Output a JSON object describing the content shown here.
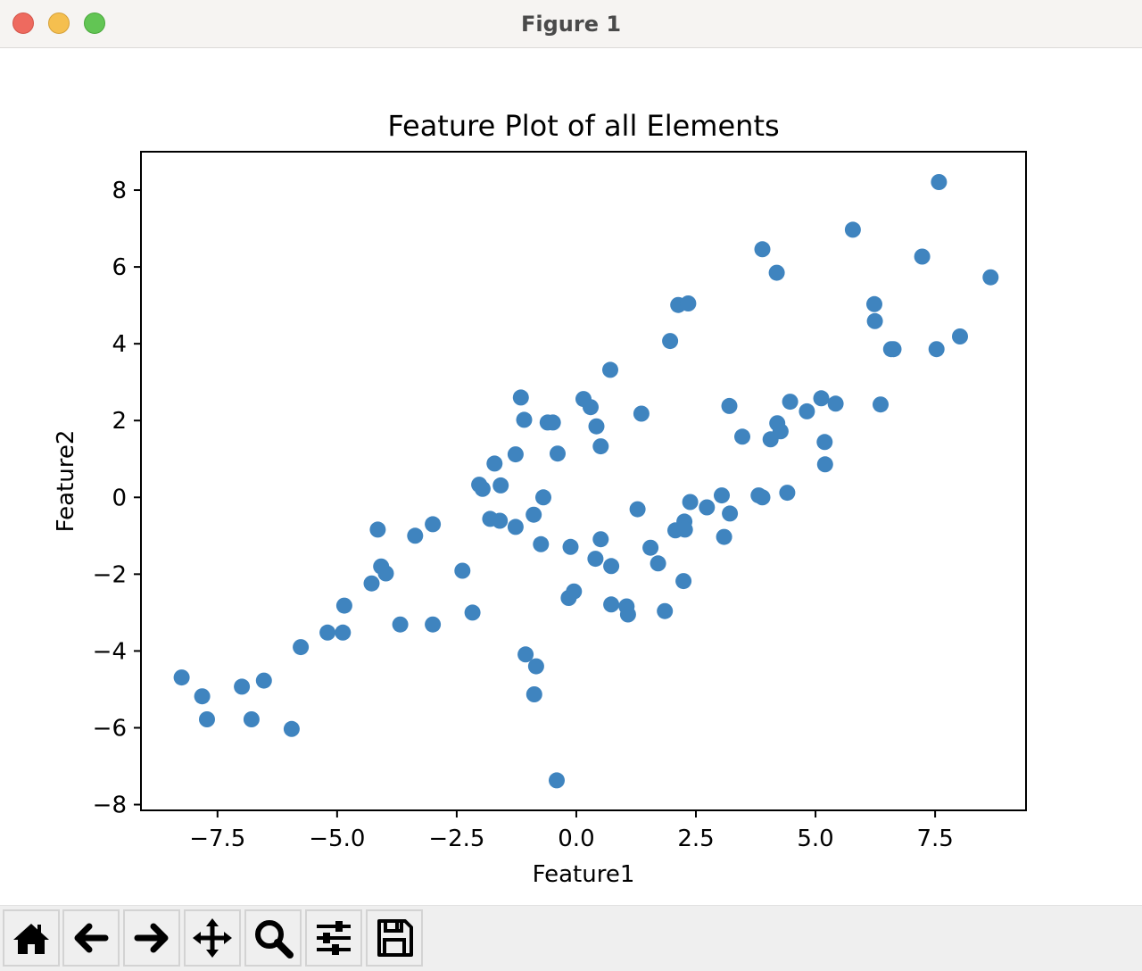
{
  "window": {
    "title": "Figure 1"
  },
  "toolbar": {
    "buttons": [
      {
        "name": "home-button",
        "icon": "home-icon"
      },
      {
        "name": "back-button",
        "icon": "arrow-left-icon"
      },
      {
        "name": "forward-button",
        "icon": "arrow-right-icon"
      },
      {
        "name": "pan-button",
        "icon": "move-icon"
      },
      {
        "name": "zoom-button",
        "icon": "magnifier-icon"
      },
      {
        "name": "configure-subplots-button",
        "icon": "sliders-icon"
      },
      {
        "name": "save-button",
        "icon": "floppy-disk-icon"
      }
    ]
  },
  "colors": {
    "marker": "#3f84bf",
    "axes": "#000000",
    "background": "#ffffff"
  },
  "chart_data": {
    "type": "scatter",
    "title": "Feature Plot of all Elements",
    "xlabel": "Feature1",
    "ylabel": "Feature2",
    "xlim": [
      -9.1,
      9.4
    ],
    "ylim": [
      -8.15,
      9.0
    ],
    "xticks": [
      -7.5,
      -5.0,
      -2.5,
      0.0,
      2.5,
      5.0,
      7.5
    ],
    "xtick_labels": [
      "−7.5",
      "−5.0",
      "−2.5",
      "0.0",
      "2.5",
      "5.0",
      "7.5"
    ],
    "yticks": [
      -8,
      -6,
      -4,
      -2,
      0,
      2,
      4,
      6,
      8
    ],
    "ytick_labels": [
      "−8",
      "−6",
      "−4",
      "−2",
      "0",
      "2",
      "4",
      "6",
      "8"
    ],
    "grid": false,
    "legend": "none",
    "series": [
      {
        "points": [
          [
            -8.25,
            -4.69
          ],
          [
            -7.82,
            -5.18
          ],
          [
            -7.72,
            -5.78
          ],
          [
            -6.99,
            -4.93
          ],
          [
            -6.79,
            -5.78
          ],
          [
            -6.53,
            -4.77
          ],
          [
            -5.95,
            -6.03
          ],
          [
            -5.76,
            -3.9
          ],
          [
            -5.2,
            -3.52
          ],
          [
            -4.88,
            -3.52
          ],
          [
            -4.85,
            -2.82
          ],
          [
            -4.28,
            -2.24
          ],
          [
            -4.15,
            -0.84
          ],
          [
            -4.08,
            -1.8
          ],
          [
            -3.98,
            -1.98
          ],
          [
            -3.68,
            -3.31
          ],
          [
            -3.37,
            -1.0
          ],
          [
            -3.0,
            -0.7
          ],
          [
            -3.0,
            -3.31
          ],
          [
            -2.38,
            -1.91
          ],
          [
            -2.17,
            -3.0
          ],
          [
            -2.03,
            0.33
          ],
          [
            -1.96,
            0.22
          ],
          [
            -1.8,
            -0.56
          ],
          [
            -1.71,
            0.88
          ],
          [
            -1.6,
            -0.61
          ],
          [
            -1.58,
            0.31
          ],
          [
            -1.27,
            -0.77
          ],
          [
            -1.27,
            1.12
          ],
          [
            -1.16,
            2.6
          ],
          [
            -1.09,
            2.02
          ],
          [
            -1.06,
            -4.09
          ],
          [
            -0.89,
            -0.45
          ],
          [
            -0.88,
            -5.13
          ],
          [
            -0.84,
            -4.4
          ],
          [
            -0.74,
            -1.22
          ],
          [
            -0.69,
            0.0
          ],
          [
            -0.6,
            1.95
          ],
          [
            -0.49,
            1.95
          ],
          [
            -0.39,
            1.14
          ],
          [
            -0.41,
            -7.37
          ],
          [
            -0.16,
            -2.62
          ],
          [
            -0.12,
            -1.29
          ],
          [
            -0.05,
            -2.45
          ],
          [
            0.15,
            2.56
          ],
          [
            0.3,
            2.35
          ],
          [
            0.4,
            -1.6
          ],
          [
            0.42,
            1.85
          ],
          [
            0.51,
            1.33
          ],
          [
            0.51,
            -1.09
          ],
          [
            0.71,
            3.32
          ],
          [
            0.73,
            -1.79
          ],
          [
            0.73,
            -2.79
          ],
          [
            1.05,
            -2.84
          ],
          [
            1.08,
            -3.05
          ],
          [
            1.28,
            -0.31
          ],
          [
            1.36,
            2.18
          ],
          [
            1.55,
            -1.31
          ],
          [
            1.71,
            -1.72
          ],
          [
            1.85,
            -2.96
          ],
          [
            1.96,
            4.07
          ],
          [
            2.07,
            -0.86
          ],
          [
            2.13,
            5.01
          ],
          [
            2.24,
            -2.18
          ],
          [
            2.26,
            -0.63
          ],
          [
            2.27,
            -0.84
          ],
          [
            2.34,
            5.05
          ],
          [
            2.38,
            -0.12
          ],
          [
            2.73,
            -0.26
          ],
          [
            3.04,
            0.05
          ],
          [
            3.09,
            -1.03
          ],
          [
            3.2,
            2.38
          ],
          [
            3.21,
            -0.42
          ],
          [
            3.47,
            1.58
          ],
          [
            3.81,
            0.05
          ],
          [
            3.89,
            6.46
          ],
          [
            3.89,
            0.0
          ],
          [
            4.06,
            1.51
          ],
          [
            4.19,
            5.85
          ],
          [
            4.2,
            1.93
          ],
          [
            4.27,
            1.72
          ],
          [
            4.41,
            0.12
          ],
          [
            4.47,
            2.49
          ],
          [
            4.82,
            2.24
          ],
          [
            5.12,
            2.58
          ],
          [
            5.19,
            1.44
          ],
          [
            5.2,
            0.86
          ],
          [
            5.42,
            2.44
          ],
          [
            5.78,
            6.97
          ],
          [
            6.23,
            5.03
          ],
          [
            6.24,
            4.59
          ],
          [
            6.36,
            2.42
          ],
          [
            6.58,
            3.86
          ],
          [
            6.63,
            3.86
          ],
          [
            7.23,
            6.27
          ],
          [
            7.53,
            3.86
          ],
          [
            7.58,
            8.21
          ],
          [
            8.02,
            4.19
          ],
          [
            8.66,
            5.73
          ]
        ]
      }
    ]
  }
}
